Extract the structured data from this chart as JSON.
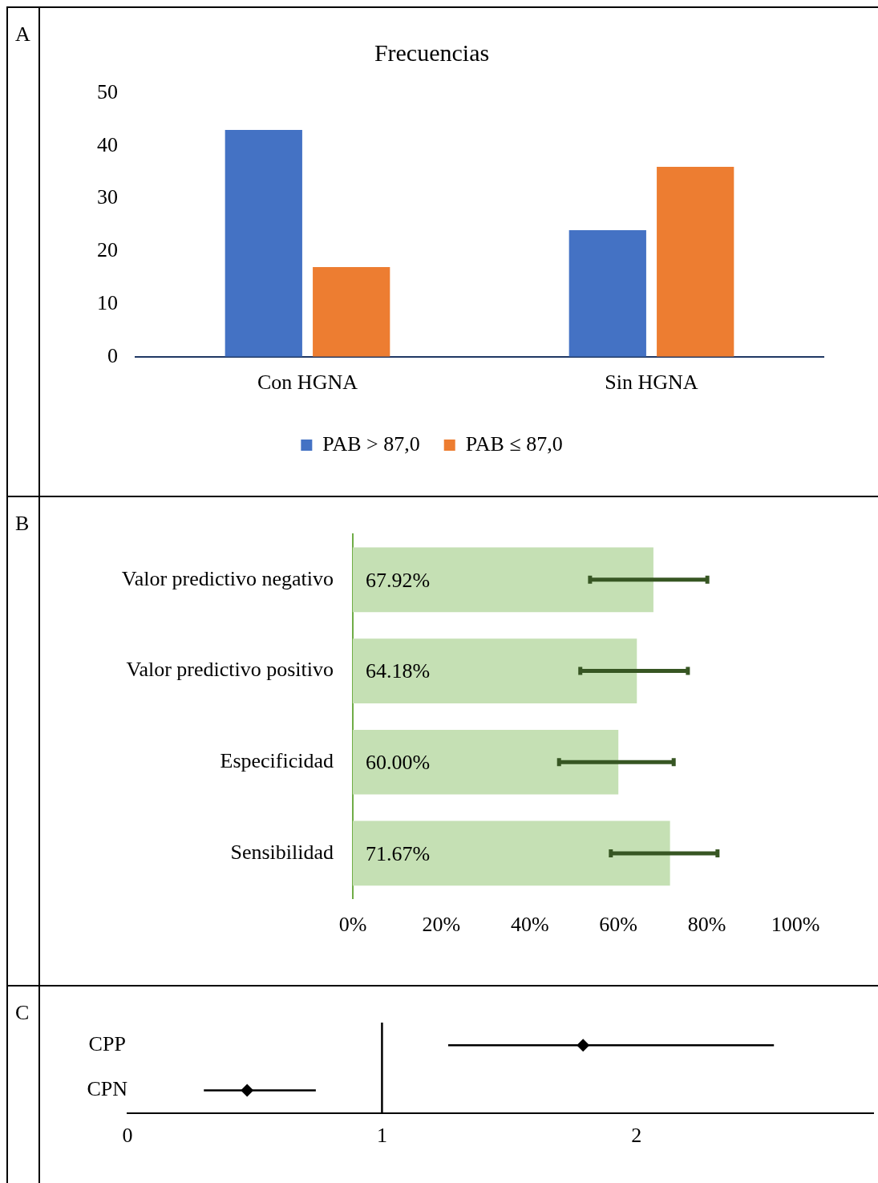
{
  "chart_data": [
    {
      "type": "bar",
      "title": "Frecuencias",
      "annotations": [
        "A"
      ],
      "categories": [
        "Con HGNA",
        "Sin HGNA"
      ],
      "series": [
        {
          "name": "PAB > 87,0",
          "color": "#4472c4",
          "values": [
            43,
            24
          ]
        },
        {
          "name": "PAB ≤ 87,0",
          "color": "#ed7d31",
          "values": [
            17,
            36
          ]
        }
      ],
      "ylim": [
        0,
        50
      ],
      "yticks": [
        0,
        10,
        20,
        30,
        40,
        50
      ],
      "grid": false,
      "legend": "bottom"
    },
    {
      "type": "bar",
      "orientation": "horizontal",
      "annotations": [
        "B"
      ],
      "categories": [
        "Valor predictivo negativo",
        "Valor predictivo positivo",
        "Especificidad",
        "Sensibilidad"
      ],
      "values": [
        67.92,
        64.18,
        60.0,
        71.67
      ],
      "color": "#c5e0b4",
      "value_labels": [
        "67.92%",
        "64.18%",
        "60.00%",
        "71.67%"
      ],
      "errors": [
        [
          53.6,
          80.1
        ],
        [
          51.4,
          75.7
        ],
        [
          46.6,
          72.5
        ],
        [
          58.3,
          82.4
        ]
      ],
      "xlim": [
        0,
        100
      ],
      "xticks": [
        {
          "value": 0,
          "label": "0%"
        },
        {
          "value": 20,
          "label": "20%"
        },
        {
          "value": 40,
          "label": "40%"
        },
        {
          "value": 60,
          "label": "60%"
        },
        {
          "value": 80,
          "label": "80%"
        },
        {
          "value": 100,
          "label": "100%"
        }
      ],
      "grid": false
    },
    {
      "type": "scatter",
      "orientation": "horizontal",
      "annotations": [
        "C"
      ],
      "categories": [
        "CPP",
        "CPN"
      ],
      "values": [
        1.79,
        0.47
      ],
      "color": "#000000",
      "marker": "diamond",
      "errors": [
        [
          1.26,
          2.54
        ],
        [
          0.3,
          0.74
        ]
      ],
      "xlim": [
        0,
        2.93
      ],
      "xticks": [
        0,
        1,
        2
      ],
      "ref_lines": [
        {
          "axis": "x",
          "value": 1,
          "color": "#000000"
        }
      ],
      "grid": false
    }
  ]
}
